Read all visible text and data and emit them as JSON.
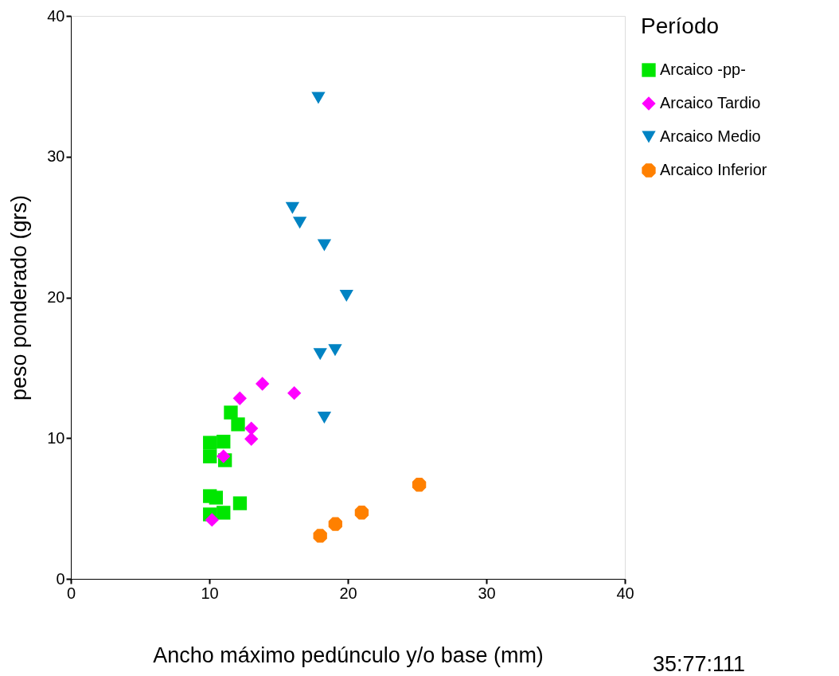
{
  "chart_data": {
    "type": "scatter",
    "xlabel": "Ancho máximo pedúnculo y/o base (mm)",
    "ylabel": "peso ponderado (grs)",
    "legend_title": "Período",
    "legend": "right",
    "grid": false,
    "xlim": [
      0,
      40
    ],
    "ylim": [
      0,
      40
    ],
    "xticks": [
      0,
      10,
      20,
      30,
      40
    ],
    "yticks": [
      0,
      10,
      20,
      30,
      40
    ],
    "annotations": [
      "35:77:111"
    ],
    "series": [
      {
        "name": "Arcaico -pp-",
        "color": "#00e600",
        "marker": "square",
        "x": [
          11.55,
          12.07,
          10.04,
          11.02,
          10.04,
          11.13,
          10.04,
          10.48,
          12.21,
          10.04,
          11.02
        ],
        "values": [
          11.82,
          10.98,
          9.67,
          9.75,
          8.7,
          8.43,
          5.88,
          5.77,
          5.37,
          4.58,
          4.7
        ]
      },
      {
        "name": "Arcaico Tardio",
        "color": "#ff00ff",
        "marker": "diamond",
        "x": [
          13.83,
          16.13,
          12.2,
          13.03,
          13.03,
          11.02,
          10.19
        ],
        "values": [
          13.86,
          13.2,
          12.83,
          10.69,
          9.94,
          8.71,
          4.19
        ]
      },
      {
        "name": "Arcaico Medio",
        "color": "#0083c3",
        "marker": "triangle",
        "x": [
          17.87,
          16.0,
          16.53,
          18.3,
          19.9,
          18.0,
          19.08,
          18.3
        ],
        "values": [
          34.17,
          26.35,
          25.31,
          23.7,
          20.12,
          15.97,
          16.25,
          11.45
        ]
      },
      {
        "name": "Arcaico Inferior",
        "color": "#ff8000",
        "marker": "circle",
        "x": [
          25.15,
          21.0,
          19.1,
          18.0
        ],
        "values": [
          6.69,
          4.71,
          3.9,
          3.06
        ]
      }
    ]
  }
}
